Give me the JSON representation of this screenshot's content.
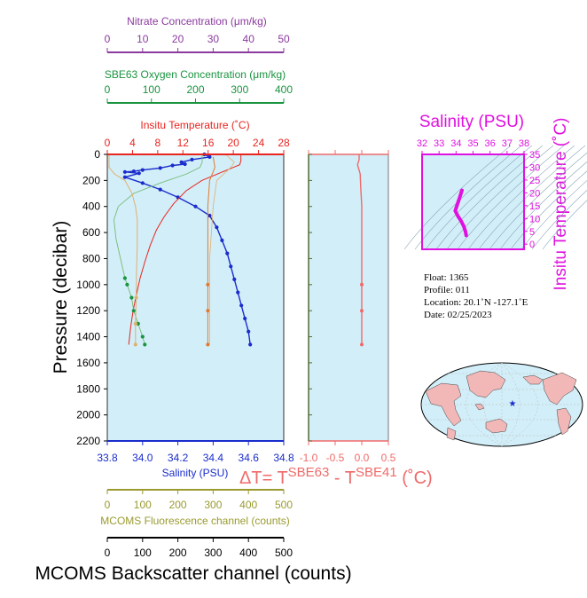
{
  "colors": {
    "nitrate": "#8b3a9e",
    "oxygen": "#1a9440",
    "temperature": "#e8251f",
    "salinity": "#1a2ccc",
    "fluorescence": "#9a9a30",
    "backscatter": "#000000",
    "delta_t": "#f06a6a",
    "ts_magenta": "#e011e0",
    "panel_fill": "#d2eef8",
    "nitrate_data": "#e0b070",
    "fluorescence_data": "#e07a30",
    "oxygen_data": "#77bb77",
    "map_land": "#f2b8b8"
  },
  "axes": {
    "nitrate": {
      "label": "Nitrate Concentration (μm/kg)",
      "ticks": [
        "0",
        "10",
        "20",
        "30",
        "40",
        "50"
      ]
    },
    "oxygen": {
      "label": "SBE63 Oxygen Concentration (μm/kg)",
      "ticks": [
        "0",
        "100",
        "200",
        "300",
        "400"
      ]
    },
    "temperature": {
      "label": "Insitu Temperature (˚C)",
      "ticks": [
        "0",
        "4",
        "8",
        "12",
        "16",
        "20",
        "24",
        "28"
      ]
    },
    "salinity": {
      "label": "Salinity (PSU)",
      "ticks": [
        "33.8",
        "34.0",
        "34.2",
        "34.4",
        "34.6",
        "34.8"
      ]
    },
    "fluorescence": {
      "label": "MCOMS Fluorescence channel (counts)",
      "ticks": [
        "0",
        "100",
        "200",
        "300",
        "400",
        "500"
      ]
    },
    "backscatter": {
      "label": "MCOMS Backscatter channel (counts)",
      "ticks": [
        "0",
        "100",
        "200",
        "300",
        "400",
        "500"
      ]
    },
    "pressure": {
      "label": "Pressure (decibar)",
      "ticks": [
        "0",
        "200",
        "400",
        "600",
        "800",
        "1000",
        "1200",
        "1400",
        "1600",
        "1800",
        "2000",
        "2200"
      ]
    },
    "delta_t": {
      "ticks": [
        "-1.0",
        "-0.5",
        "0.0",
        "0.5"
      ],
      "label_main": "ΔT= T",
      "sup1": "SBE63",
      "mid": " - T",
      "sup2": "SBE41",
      "unit": " (˚C)"
    }
  },
  "ts_diagram": {
    "title": "Salinity (PSU)",
    "side_label": "Insitu Temperature (˚C)",
    "sal_ticks": [
      "32",
      "33",
      "34",
      "35",
      "36",
      "37",
      "38"
    ],
    "temp_ticks": [
      "0",
      "5",
      "10",
      "15",
      "20",
      "25",
      "30",
      "35"
    ]
  },
  "float_info": {
    "float": "Float:  1365",
    "profile": "Profile:  011",
    "location": "Location:  20.1˚N  -127.1˚E",
    "date": "Date:  02/25/2023"
  },
  "chart_data": [
    {
      "type": "line",
      "title": "",
      "ylabel": "Pressure (decibar)",
      "ylim": [
        2200,
        0
      ],
      "series": [
        {
          "name": "Salinity (PSU)",
          "xlim": [
            33.8,
            34.8
          ],
          "points": [
            [
              34.35,
              0
            ],
            [
              34.38,
              20
            ],
            [
              34.28,
              40
            ],
            [
              34.22,
              60
            ],
            [
              34.24,
              75
            ],
            [
              34.17,
              85
            ],
            [
              34.1,
              105
            ],
            [
              34.0,
              120
            ],
            [
              33.95,
              130
            ],
            [
              33.9,
              135
            ],
            [
              33.98,
              145
            ],
            [
              33.9,
              175
            ],
            [
              34.0,
              220
            ],
            [
              34.1,
              270
            ],
            [
              34.2,
              330
            ],
            [
              34.3,
              400
            ],
            [
              34.38,
              470
            ],
            [
              34.42,
              560
            ],
            [
              34.45,
              660
            ],
            [
              34.48,
              760
            ],
            [
              34.5,
              860
            ],
            [
              34.52,
              960
            ],
            [
              34.54,
              1060
            ],
            [
              34.56,
              1160
            ],
            [
              34.58,
              1260
            ],
            [
              34.6,
              1360
            ],
            [
              34.61,
              1460
            ]
          ]
        },
        {
          "name": "Insitu Temperature (˚C)",
          "xlim": [
            0,
            28
          ],
          "points": [
            [
              21.2,
              0
            ],
            [
              21.2,
              50
            ],
            [
              21.0,
              80
            ],
            [
              20.0,
              100
            ],
            [
              18.0,
              140
            ],
            [
              15.0,
              200
            ],
            [
              12.5,
              280
            ],
            [
              10.5,
              380
            ],
            [
              9.0,
              480
            ],
            [
              7.8,
              580
            ],
            [
              6.8,
              700
            ],
            [
              6.0,
              820
            ],
            [
              5.2,
              950
            ],
            [
              4.6,
              1080
            ],
            [
              4.1,
              1200
            ],
            [
              3.7,
              1330
            ],
            [
              3.4,
              1460
            ]
          ]
        },
        {
          "name": "SBE63 Oxygen Concentration (μm/kg)",
          "xlim": [
            0,
            400
          ],
          "points": [
            [
              215,
              0
            ],
            [
              215,
              60
            ],
            [
              210,
              100
            ],
            [
              180,
              150
            ],
            [
              120,
              220
            ],
            [
              60,
              300
            ],
            [
              25,
              400
            ],
            [
              15,
              500
            ],
            [
              20,
              650
            ],
            [
              30,
              800
            ],
            [
              40,
              950
            ],
            [
              45,
              1000
            ],
            [
              55,
              1100
            ],
            [
              60,
              1200
            ],
            [
              70,
              1300
            ],
            [
              80,
              1400
            ],
            [
              85,
              1460
            ]
          ]
        },
        {
          "name": "Nitrate Concentration (μm/kg)",
          "xlim": [
            0,
            50
          ],
          "points": [
            [
              0.5,
              0
            ],
            [
              0.5,
              100
            ],
            [
              2,
              150
            ],
            [
              5,
              200
            ],
            [
              7,
              300
            ],
            [
              8,
              400
            ],
            [
              8.5,
              500
            ],
            [
              8.5,
              700
            ],
            [
              8.3,
              900
            ],
            [
              8.2,
              1100
            ],
            [
              8,
              1300
            ],
            [
              8,
              1460
            ]
          ]
        },
        {
          "name": "MCOMS Fluorescence channel (counts)",
          "xlim": [
            0,
            500
          ],
          "points": [
            [
              300,
              20
            ],
            [
              305,
              100
            ],
            [
              290,
              200
            ],
            [
              285,
              400
            ],
            [
              285,
              600
            ],
            [
              285,
              800
            ],
            [
              285,
              1000
            ],
            [
              285,
              1200
            ],
            [
              285,
              1460
            ]
          ]
        },
        {
          "name": "MCOMS Backscatter channel (counts)",
          "xlim": [
            0,
            500
          ],
          "points": [
            [
              335,
              0
            ],
            [
              360,
              60
            ],
            [
              350,
              100
            ],
            [
              310,
              200
            ],
            [
              300,
              400
            ],
            [
              295,
              600
            ],
            [
              290,
              800
            ],
            [
              290,
              1000
            ],
            [
              290,
              1200
            ],
            [
              290,
              1460
            ]
          ]
        }
      ]
    },
    {
      "type": "line",
      "title": "",
      "xlim": [
        -1.0,
        0.5
      ],
      "ylim": [
        2200,
        0
      ],
      "series": [
        {
          "name": "ΔT",
          "points": [
            [
              -0.05,
              0
            ],
            [
              -0.05,
              40
            ],
            [
              -0.08,
              80
            ],
            [
              -0.03,
              150
            ],
            [
              -0.02,
              250
            ],
            [
              0.0,
              400
            ],
            [
              0.0,
              600
            ],
            [
              0.0,
              800
            ],
            [
              0.0,
              1000
            ],
            [
              0.0,
              1200
            ],
            [
              0.0,
              1460
            ]
          ]
        }
      ]
    },
    {
      "type": "line",
      "title": "Salinity (PSU)",
      "xlim": [
        32,
        38
      ],
      "ylim": [
        -2,
        35
      ],
      "series": [
        {
          "name": "",
          "points": [
            [
              34.35,
              21
            ],
            [
              34.2,
              18
            ],
            [
              34.05,
              15
            ],
            [
              33.95,
              13
            ],
            [
              34.1,
              11
            ],
            [
              34.3,
              9
            ],
            [
              34.45,
              7
            ],
            [
              34.55,
              5
            ],
            [
              34.6,
              3.4
            ]
          ]
        }
      ]
    }
  ]
}
